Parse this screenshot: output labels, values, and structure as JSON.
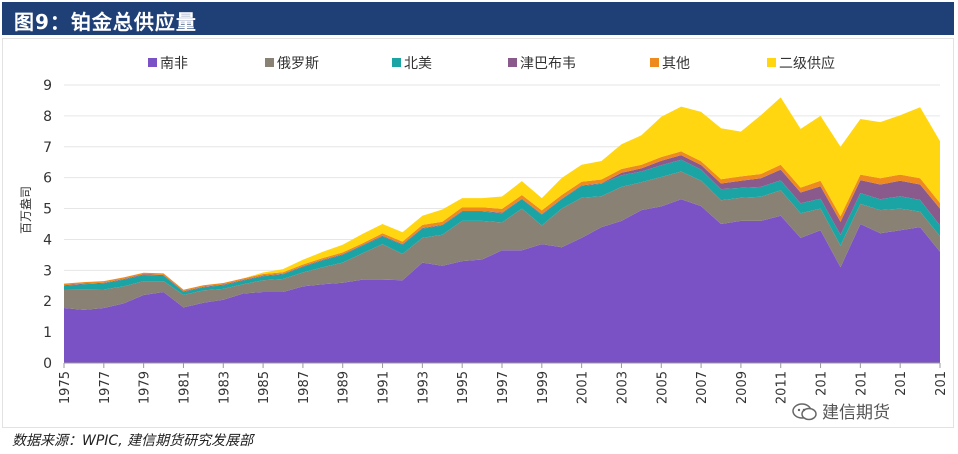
{
  "header": {
    "title": "图9：铂金总供应量"
  },
  "source": {
    "text": "数据来源：WPIC, 建信期货研究发展部"
  },
  "watermark": {
    "text": "建信期货"
  },
  "chart_data": {
    "type": "area",
    "stacked": true,
    "title": "图9：铂金总供应量",
    "ylabel": "百万盎司",
    "xlabel": "",
    "ylim": [
      0,
      9
    ],
    "yticks": [
      0,
      1,
      2,
      3,
      4,
      5,
      6,
      7,
      8,
      9
    ],
    "x": [
      1975,
      1976,
      1977,
      1978,
      1979,
      1980,
      1981,
      1982,
      1983,
      1984,
      1985,
      1986,
      1987,
      1988,
      1989,
      1990,
      1991,
      1992,
      1993,
      1994,
      1995,
      1996,
      1997,
      1998,
      1999,
      2000,
      2001,
      2002,
      2003,
      2004,
      2005,
      2006,
      2007,
      2008,
      2009,
      2010,
      2011,
      2012,
      2013,
      2014,
      2015,
      2016,
      2017,
      2018,
      2019
    ],
    "xtick_labels": [
      "1975",
      "1977",
      "1979",
      "1981",
      "1983",
      "1985",
      "1987",
      "1989",
      "1991",
      "1993",
      "1995",
      "1997",
      "1999",
      "2001",
      "2003",
      "2005",
      "2007",
      "2009",
      "2011",
      "201",
      "201",
      "201",
      "201"
    ],
    "legend_position": "top",
    "series": [
      {
        "name": "南非",
        "color": "#7b52c5",
        "values": [
          1.78,
          1.72,
          1.78,
          1.93,
          2.2,
          2.3,
          1.8,
          1.95,
          2.05,
          2.25,
          2.3,
          2.3,
          2.48,
          2.55,
          2.6,
          2.7,
          2.7,
          2.68,
          3.25,
          3.15,
          3.3,
          3.35,
          3.65,
          3.65,
          3.85,
          3.75,
          4.05,
          4.4,
          4.6,
          4.95,
          5.07,
          5.3,
          5.08,
          4.5,
          4.6,
          4.6,
          4.77,
          4.05,
          4.3,
          3.1,
          4.5,
          4.2,
          4.3,
          4.4,
          3.6
        ]
      },
      {
        "name": "俄罗斯",
        "color": "#898173",
        "values": [
          0.6,
          0.65,
          0.6,
          0.55,
          0.45,
          0.35,
          0.4,
          0.4,
          0.35,
          0.3,
          0.38,
          0.42,
          0.45,
          0.55,
          0.65,
          0.85,
          1.15,
          0.85,
          0.8,
          1.0,
          1.3,
          1.25,
          0.9,
          1.35,
          0.6,
          1.25,
          1.3,
          1.0,
          1.1,
          0.9,
          0.95,
          0.9,
          0.82,
          0.77,
          0.75,
          0.78,
          0.82,
          0.8,
          0.7,
          0.7,
          0.65,
          0.75,
          0.7,
          0.5,
          0.5
        ]
      },
      {
        "name": "北美",
        "color": "#1aa5a4",
        "values": [
          0.12,
          0.18,
          0.2,
          0.22,
          0.2,
          0.18,
          0.1,
          0.1,
          0.12,
          0.12,
          0.13,
          0.15,
          0.18,
          0.22,
          0.25,
          0.25,
          0.25,
          0.3,
          0.3,
          0.3,
          0.3,
          0.3,
          0.3,
          0.3,
          0.35,
          0.3,
          0.38,
          0.4,
          0.38,
          0.35,
          0.38,
          0.38,
          0.36,
          0.36,
          0.32,
          0.32,
          0.32,
          0.32,
          0.32,
          0.35,
          0.35,
          0.35,
          0.4,
          0.38,
          0.35
        ]
      },
      {
        "name": "津巴布韦",
        "color": "#8a5a8c",
        "values": [
          0.02,
          0.02,
          0.02,
          0.02,
          0.02,
          0.02,
          0.02,
          0.02,
          0.02,
          0.02,
          0.02,
          0.02,
          0.02,
          0.02,
          0.02,
          0.02,
          0.02,
          0.02,
          0.02,
          0.02,
          0.02,
          0.02,
          0.02,
          0.02,
          0.02,
          0.02,
          0.02,
          0.02,
          0.08,
          0.1,
          0.15,
          0.15,
          0.15,
          0.18,
          0.23,
          0.28,
          0.35,
          0.35,
          0.4,
          0.42,
          0.42,
          0.48,
          0.5,
          0.5,
          0.55
        ]
      },
      {
        "name": "其他",
        "color": "#ef8a1f",
        "values": [
          0.05,
          0.05,
          0.05,
          0.05,
          0.05,
          0.05,
          0.05,
          0.05,
          0.05,
          0.05,
          0.05,
          0.05,
          0.06,
          0.06,
          0.06,
          0.06,
          0.08,
          0.08,
          0.1,
          0.1,
          0.12,
          0.12,
          0.12,
          0.12,
          0.12,
          0.12,
          0.12,
          0.12,
          0.12,
          0.12,
          0.12,
          0.12,
          0.12,
          0.14,
          0.14,
          0.14,
          0.16,
          0.16,
          0.18,
          0.18,
          0.18,
          0.2,
          0.2,
          0.2,
          0.18
        ]
      },
      {
        "name": "二级供应",
        "color": "#ffd610",
        "values": [
          0.0,
          0.0,
          0.0,
          0.0,
          0.0,
          0.0,
          0.0,
          0.0,
          0.0,
          0.0,
          0.05,
          0.1,
          0.15,
          0.2,
          0.25,
          0.3,
          0.3,
          0.3,
          0.3,
          0.4,
          0.3,
          0.3,
          0.4,
          0.45,
          0.4,
          0.55,
          0.55,
          0.6,
          0.8,
          0.95,
          1.3,
          1.45,
          1.6,
          1.65,
          1.45,
          1.9,
          2.18,
          1.9,
          2.1,
          2.25,
          1.8,
          1.82,
          1.92,
          2.3,
          2.0
        ]
      }
    ]
  }
}
